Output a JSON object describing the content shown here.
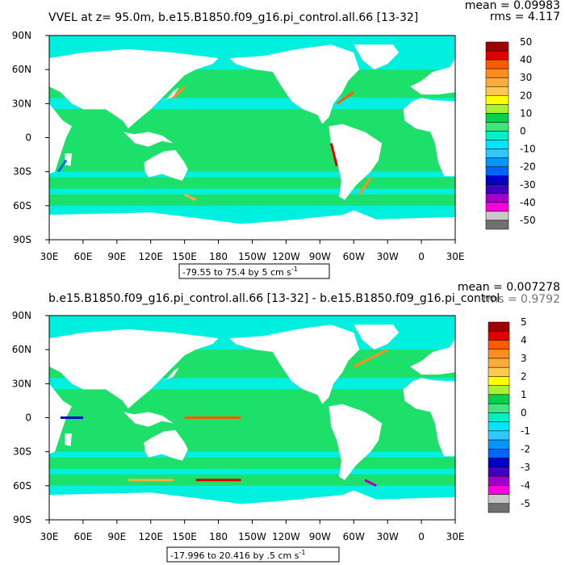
{
  "chart_data": [
    {
      "type": "heatmap",
      "title": "VVEL at z=  95.0m, b.e15.B1850.f09_g16.pi_control.all.66  [13-32]",
      "stats": {
        "mean": "mean = 0.09983",
        "rms": "rms = 4.117"
      },
      "range_label": "-79.55 to 75.4 by 5 cm s",
      "range_unit_exp": "-1",
      "x_ticks": [
        "30E",
        "60E",
        "90E",
        "120E",
        "150E",
        "180",
        "150W",
        "120W",
        "90W",
        "60W",
        "30W",
        "0",
        "30E"
      ],
      "y_ticks": [
        "90N",
        "60N",
        "30N",
        "0",
        "30S",
        "60S",
        "90S"
      ],
      "xlim": [
        30,
        390
      ],
      "ylim": [
        -90,
        90
      ],
      "colorbar": {
        "labels": [
          "50",
          "40",
          "30",
          "20",
          "10",
          "0",
          "-10",
          "-20",
          "-30",
          "-40",
          "-50"
        ],
        "colors": [
          "#a00000",
          "#e00000",
          "#ff5a00",
          "#ff8c1e",
          "#ffaa3c",
          "#ffc850",
          "#ffff00",
          "#aaf032",
          "#00d24a",
          "#3ce678",
          "#00f0c8",
          "#00e6ff",
          "#32c8ff",
          "#0096ff",
          "#0064ff",
          "#0000c8",
          "#4000c0",
          "#a000c8",
          "#ff00dc",
          "#c8c8c8",
          "#707070"
        ]
      }
    },
    {
      "type": "heatmap",
      "title": "b.e15.B1850.f09_g16.pi_control.all.66  [13-32]  -  b.e15.B1850.f09_g16.pi_control",
      "stats": {
        "mean": "mean = 0.007278",
        "rms": "rms = 0.9792"
      },
      "range_label": "-17.996 to 20.416 by .5 cm s",
      "range_unit_exp": "-1",
      "x_ticks": [
        "30E",
        "60E",
        "90E",
        "120E",
        "150E",
        "180",
        "150W",
        "120W",
        "90W",
        "60W",
        "30W",
        "0",
        "30E"
      ],
      "y_ticks": [
        "90N",
        "60N",
        "30N",
        "0",
        "30S",
        "60S",
        "90S"
      ],
      "xlim": [
        30,
        390
      ],
      "ylim": [
        -90,
        90
      ],
      "colorbar": {
        "labels": [
          "5",
          "4",
          "3",
          "2",
          "1",
          "0",
          "-1",
          "-2",
          "-3",
          "-4",
          "-5"
        ],
        "colors": [
          "#a00000",
          "#e00000",
          "#ff5a00",
          "#ff8c1e",
          "#ffaa3c",
          "#ffc850",
          "#ffff00",
          "#aaf032",
          "#00d24a",
          "#3ce678",
          "#00f0c8",
          "#00e6ff",
          "#32c8ff",
          "#0096ff",
          "#0064ff",
          "#0000c8",
          "#4000c0",
          "#a000c8",
          "#ff00dc",
          "#c8c8c8",
          "#707070"
        ]
      }
    }
  ],
  "colors": {
    "ocean_zero": "#00e6a0",
    "ocean_pos": "#22dd55",
    "ocean_neg": "#00f0e0",
    "land": "#ffffff"
  }
}
